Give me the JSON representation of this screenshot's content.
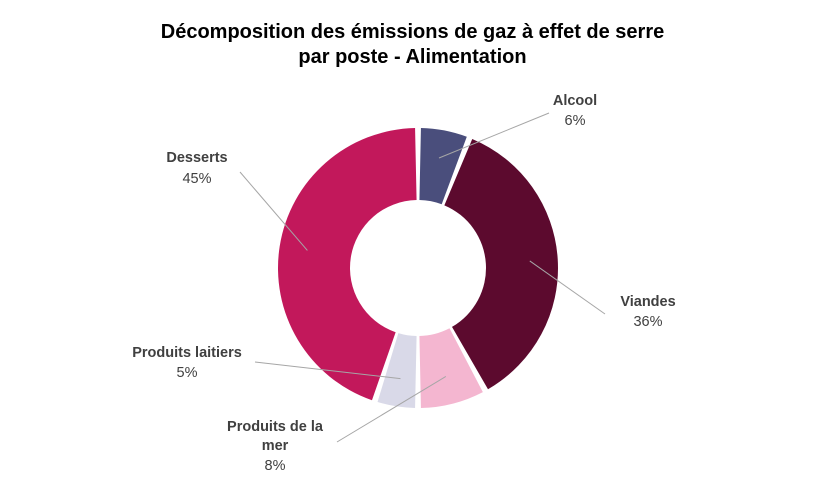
{
  "chart_data": {
    "type": "pie",
    "title_lines": [
      "Décomposition des émissions de gaz à effet de serre",
      "par poste - Alimentation"
    ],
    "slices": [
      {
        "name": "Alcool",
        "value": 6,
        "value_label": "6%",
        "color": "#4a4e7c"
      },
      {
        "name": "Viandes",
        "value": 36,
        "value_label": "36%",
        "color": "#5c0a2e"
      },
      {
        "name": "Produits de la mer",
        "value": 8,
        "value_label": "8%",
        "color": "#f4b6d0"
      },
      {
        "name": "Produits laitiers",
        "value": 5,
        "value_label": "5%",
        "color": "#d9d9e8"
      },
      {
        "name": "Desserts",
        "value": 45,
        "value_label": "45%",
        "color": "#c2185b"
      }
    ],
    "legend": "none"
  }
}
